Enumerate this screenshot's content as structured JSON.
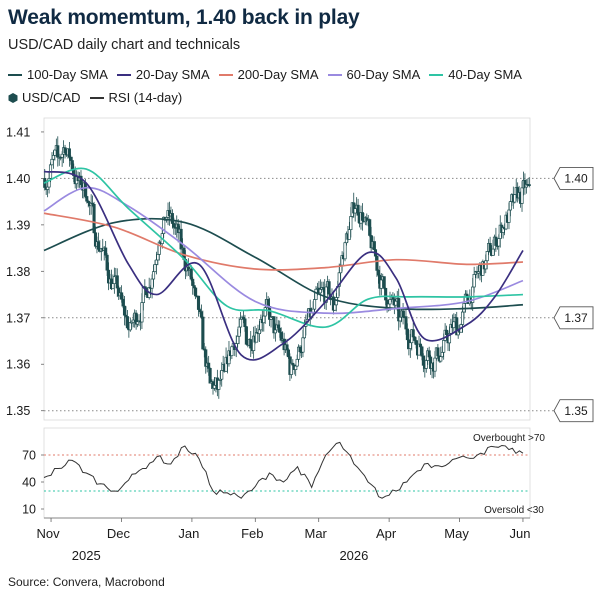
{
  "header": {
    "title": "Weak momemtum, 1.40 back in play",
    "subtitle": "USD/CAD daily chart and technicals"
  },
  "legend": {
    "row1": [
      {
        "label": "100-Day SMA",
        "color": "#1d4d4f",
        "icon": "line"
      },
      {
        "label": "20-Day SMA",
        "color": "#3a2f80",
        "icon": "line"
      },
      {
        "label": "200-Day SMA",
        "color": "#e07a6a",
        "icon": "line"
      },
      {
        "label": "60-Day SMA",
        "color": "#9a8ae0",
        "icon": "line"
      },
      {
        "label": "40-Day SMA",
        "color": "#2ec4a4",
        "icon": "line"
      }
    ],
    "row2": [
      {
        "label": "USD/CAD",
        "color": "#1d4d4f",
        "icon": "candle-hex"
      },
      {
        "label": "RSI (14-day)",
        "color": "#333333",
        "icon": "line"
      }
    ]
  },
  "source": "Source: Convera, Macrobond",
  "chart_data": [
    {
      "type": "candlestick",
      "name": "price-panel",
      "ylim": [
        1.348,
        1.413
      ],
      "yticks": [
        1.35,
        1.36,
        1.37,
        1.38,
        1.39,
        1.4,
        1.41
      ],
      "ytick_labels": [
        "1.35",
        "1.36",
        "1.37",
        "1.38",
        "1.39",
        "1.40",
        "1.41"
      ],
      "reference_lines": [
        1.4,
        1.37,
        1.35
      ],
      "reference_labels": [
        "1.40",
        "1.37",
        "1.35"
      ],
      "xlim": [
        0,
        69
      ],
      "xticks": [
        {
          "pos": 1,
          "label": "Nov"
        },
        {
          "pos": 11,
          "label": "Dec"
        },
        {
          "pos": 21,
          "label": "Jan"
        },
        {
          "pos": 30,
          "label": "Feb"
        },
        {
          "pos": 39,
          "label": "Mar"
        },
        {
          "pos": 49,
          "label": "Apr"
        },
        {
          "pos": 59,
          "label": "May"
        },
        {
          "pos": 68,
          "label": "Jun"
        }
      ],
      "year_labels": [
        {
          "pos": 6,
          "label": "2025"
        },
        {
          "pos": 44,
          "label": "2026"
        }
      ],
      "ohlc_weekly_close": [
        1.4015,
        1.4042,
        1.4075,
        1.403,
        1.3985,
        1.397,
        1.3905,
        1.385,
        1.3795,
        1.377,
        1.3715,
        1.367,
        1.3705,
        1.376,
        1.3795,
        1.388,
        1.392,
        1.3895,
        1.3855,
        1.3805,
        1.373,
        1.365,
        1.3555,
        1.355,
        1.3575,
        1.3635,
        1.3675,
        1.366,
        1.3665,
        1.3705,
        1.3715,
        1.366,
        1.3645,
        1.3595,
        1.3615,
        1.3665,
        1.37,
        1.3745,
        1.3745,
        1.3725,
        1.3815,
        1.3885,
        1.3945,
        1.3925,
        1.387,
        1.3815,
        1.3765,
        1.373,
        1.3705,
        1.3685,
        1.3665,
        1.364,
        1.362,
        1.3605,
        1.3625,
        1.366,
        1.3685,
        1.3715,
        1.3755,
        1.3795,
        1.3815,
        1.3845,
        1.3885,
        1.392,
        1.3945,
        1.396,
        1.3968
      ],
      "series": [
        {
          "name": "100-Day SMA",
          "color": "#1d4d4f",
          "x": [
            0,
            10,
            20,
            30,
            40,
            50,
            60,
            68
          ],
          "values": [
            1.3845,
            1.3905,
            1.3905,
            1.383,
            1.3745,
            1.372,
            1.372,
            1.3728
          ]
        },
        {
          "name": "200-Day SMA",
          "color": "#e07a6a",
          "x": [
            0,
            10,
            20,
            30,
            40,
            50,
            60,
            68
          ],
          "values": [
            1.3925,
            1.3895,
            1.3835,
            1.3805,
            1.3808,
            1.3825,
            1.3815,
            1.382
          ]
        },
        {
          "name": "60-Day SMA",
          "color": "#9a8ae0",
          "x": [
            0,
            6,
            12,
            20,
            30,
            40,
            50,
            60,
            68
          ],
          "values": [
            1.393,
            1.398,
            1.394,
            1.3855,
            1.3735,
            1.371,
            1.372,
            1.3735,
            1.378
          ]
        },
        {
          "name": "40-Day SMA",
          "color": "#2ec4a4",
          "x": [
            0,
            6,
            12,
            20,
            26,
            32,
            40,
            46,
            52,
            60,
            68
          ],
          "values": [
            1.399,
            1.402,
            1.3935,
            1.3825,
            1.3725,
            1.3715,
            1.368,
            1.374,
            1.3745,
            1.3745,
            1.375
          ]
        },
        {
          "name": "20-Day SMA",
          "color": "#3a2f80",
          "x": [
            0,
            6,
            12,
            16,
            22,
            28,
            34,
            40,
            46,
            50,
            54,
            60,
            64,
            68
          ],
          "values": [
            1.4015,
            1.399,
            1.3815,
            1.375,
            1.3815,
            1.362,
            1.3645,
            1.3735,
            1.384,
            1.3785,
            1.3655,
            1.3685,
            1.3745,
            1.3845
          ]
        }
      ]
    },
    {
      "type": "line",
      "name": "rsi-panel",
      "ylim": [
        0,
        100
      ],
      "yticks": [
        10,
        40,
        70
      ],
      "ytick_labels": [
        "10",
        "40",
        "70"
      ],
      "thresholds": [
        70,
        30
      ],
      "threshold_labels": [
        "Overbought >70",
        "Oversold <30"
      ],
      "series": [
        {
          "name": "RSI (14-day)",
          "color": "#333333",
          "x": [
            0,
            2,
            4,
            6,
            8,
            10,
            12,
            14,
            16,
            18,
            20,
            22,
            24,
            26,
            28,
            30,
            32,
            34,
            36,
            38,
            40,
            42,
            44,
            46,
            48,
            50,
            52,
            54,
            56,
            58,
            60,
            62,
            64,
            66,
            68
          ],
          "values": [
            45,
            55,
            64,
            50,
            38,
            30,
            42,
            55,
            68,
            60,
            80,
            66,
            30,
            28,
            22,
            35,
            50,
            40,
            57,
            34,
            70,
            84,
            60,
            40,
            22,
            30,
            45,
            60,
            58,
            65,
            67,
            72,
            79,
            76,
            72
          ]
        }
      ]
    }
  ]
}
